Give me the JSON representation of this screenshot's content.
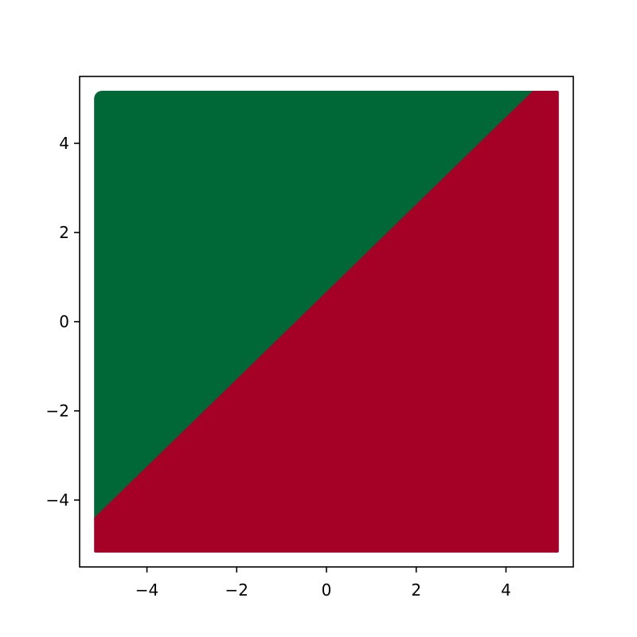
{
  "chart_data": {
    "type": "scatter",
    "title": "",
    "xlabel": "",
    "ylabel": "",
    "xlim": [
      -5.5,
      5.5
    ],
    "ylim": [
      -5.5,
      5.5
    ],
    "grid": false,
    "legend": "none",
    "x_ticks": [
      -4,
      -2,
      0,
      2,
      4
    ],
    "y_ticks": [
      -4,
      -2,
      0,
      2,
      4
    ],
    "x_tick_labels": [
      "−4",
      "−2",
      "0",
      "2",
      "4"
    ],
    "y_tick_labels": [
      "−4",
      "−2",
      "0",
      "2",
      "4"
    ],
    "grid_points": {
      "x_range": [
        -5,
        5
      ],
      "y_range": [
        -5,
        5
      ]
    },
    "series": [
      {
        "color": "#006837",
        "region": "above-boundary"
      },
      {
        "color": "#a50026",
        "region": "below-boundary"
      }
    ],
    "decision_boundary": {
      "points": [
        [
          -5,
          -4.4
        ],
        [
          4.6,
          5
        ]
      ]
    }
  }
}
